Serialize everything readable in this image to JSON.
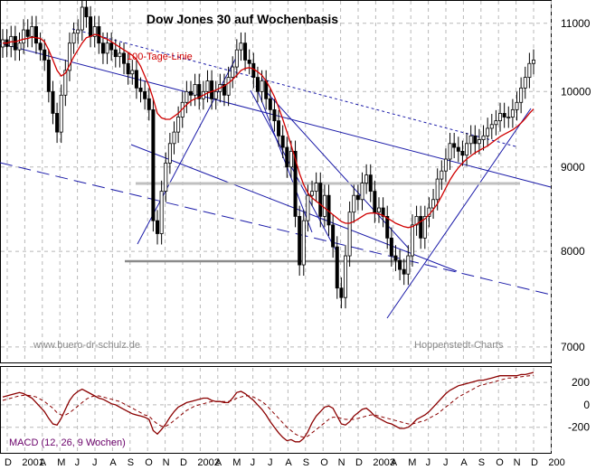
{
  "chart_data": [
    {
      "type": "candlestick",
      "title": "Dow Jones 30 auf Wochenbasis",
      "ma_label": "100-Tage-Linie",
      "watermark_left": "www.buero-dr-schulz.de",
      "watermark_right": "Hoppenstedt-Charts",
      "y_ticks": [
        7000,
        8000,
        9000,
        10000,
        11000
      ],
      "ylim": [
        6850,
        11350
      ],
      "y_scale": "log",
      "x_labels": [
        "D",
        "2001",
        "A",
        "M",
        "J",
        "J",
        "A",
        "S",
        "O",
        "N",
        "D",
        "2002",
        "A",
        "M",
        "J",
        "J",
        "A",
        "S",
        "O",
        "N",
        "D",
        "2003",
        "A",
        "M",
        "J",
        "J",
        "A",
        "S",
        "O",
        "N",
        "D",
        "200"
      ],
      "weekly_closes": [
        10750,
        10650,
        10800,
        10600,
        10700,
        10900,
        10800,
        10950,
        10700,
        10600,
        10450,
        10000,
        9700,
        9450,
        9950,
        10300,
        10700,
        10850,
        10900,
        11250,
        11100,
        10800,
        10950,
        10700,
        10550,
        10700,
        10600,
        10500,
        10550,
        10400,
        10250,
        10300,
        10050,
        10000,
        9900,
        9750,
        8350,
        8200,
        8700,
        9050,
        9300,
        9450,
        9650,
        9850,
        10000,
        9950,
        10100,
        9900,
        10000,
        10150,
        9900,
        10000,
        10100,
        9950,
        10200,
        10350,
        10600,
        10700,
        10450,
        10400,
        10200,
        10000,
        10150,
        9900,
        9750,
        9600,
        9400,
        9250,
        9000,
        9200,
        8400,
        7850,
        8350,
        8650,
        8700,
        8800,
        8400,
        8650,
        8300,
        8050,
        7600,
        7500,
        7950,
        8450,
        8650,
        8600,
        8800,
        8900,
        8700,
        8450,
        8500,
        8400,
        8150,
        7950,
        7900,
        7800,
        7750,
        7950,
        8300,
        8400,
        8150,
        8400,
        8500,
        8600,
        8850,
        8950,
        9100,
        9300,
        9250,
        9200,
        9150,
        9300,
        9400,
        9300,
        9350,
        9400,
        9500,
        9550,
        9600,
        9700,
        9650,
        9650,
        9750,
        9850,
        10050,
        10200,
        10400,
        10450
      ],
      "ma_values": [
        10700,
        10700,
        10720,
        10720,
        10740,
        10760,
        10770,
        10790,
        10780,
        10770,
        10720,
        10600,
        10450,
        10300,
        10220,
        10260,
        10380,
        10500,
        10600,
        10700,
        10780,
        10800,
        10830,
        10820,
        10780,
        10760,
        10720,
        10680,
        10640,
        10600,
        10560,
        10520,
        10460,
        10360,
        10220,
        10080,
        9900,
        9700,
        9640,
        9620,
        9620,
        9660,
        9700,
        9760,
        9820,
        9870,
        9900,
        9920,
        9950,
        9980,
        10000,
        10020,
        10050,
        10080,
        10120,
        10170,
        10230,
        10300,
        10330,
        10340,
        10320,
        10280,
        10230,
        10150,
        10050,
        9930,
        9780,
        9620,
        9450,
        9280,
        9100,
        8920,
        8780,
        8680,
        8620,
        8580,
        8540,
        8500,
        8460,
        8420,
        8380,
        8340,
        8320,
        8320,
        8340,
        8370,
        8400,
        8430,
        8440,
        8440,
        8430,
        8410,
        8380,
        8350,
        8320,
        8300,
        8280,
        8270,
        8280,
        8310,
        8340,
        8370,
        8420,
        8480,
        8550,
        8640,
        8740,
        8840,
        8920,
        8990,
        9050,
        9100,
        9140,
        9180,
        9210,
        9240,
        9270,
        9310,
        9350,
        9390,
        9420,
        9450,
        9480,
        9520,
        9570,
        9630,
        9700,
        9760
      ],
      "macd_label": "MACD (12, 26, 9 Wochen)",
      "macd_ticks": [
        200,
        0,
        -200
      ],
      "macd_ylim": [
        -420,
        330
      ],
      "macd_values": [
        70,
        80,
        90,
        100,
        110,
        100,
        80,
        60,
        20,
        -20,
        -60,
        -120,
        -170,
        -180,
        -120,
        -40,
        40,
        90,
        120,
        140,
        120,
        100,
        80,
        60,
        50,
        30,
        10,
        0,
        -20,
        -40,
        -60,
        -80,
        -90,
        -100,
        -110,
        -130,
        -230,
        -260,
        -220,
        -170,
        -110,
        -60,
        -20,
        0,
        20,
        30,
        40,
        50,
        60,
        60,
        40,
        30,
        30,
        20,
        20,
        60,
        110,
        120,
        100,
        70,
        40,
        0,
        -40,
        -90,
        -150,
        -200,
        -250,
        -290,
        -320,
        -310,
        -330,
        -330,
        -300,
        -240,
        -160,
        -100,
        -60,
        -20,
        -10,
        -30,
        -100,
        -170,
        -180,
        -150,
        -100,
        -70,
        -40,
        -30,
        -60,
        -100,
        -120,
        -140,
        -160,
        -170,
        -190,
        -210,
        -210,
        -200,
        -170,
        -130,
        -110,
        -90,
        -60,
        -20,
        20,
        60,
        100,
        130,
        150,
        170,
        180,
        190,
        200,
        210,
        220,
        220,
        230,
        240,
        250,
        260,
        260,
        260,
        260,
        260,
        270,
        270,
        280,
        290
      ],
      "macd_signal": [
        40,
        50,
        60,
        70,
        80,
        85,
        85,
        80,
        70,
        50,
        30,
        0,
        -30,
        -70,
        -90,
        -90,
        -70,
        -40,
        -10,
        20,
        50,
        70,
        80,
        80,
        70,
        60,
        50,
        40,
        30,
        10,
        -10,
        -30,
        -50,
        -70,
        -90,
        -100,
        -140,
        -170,
        -190,
        -190,
        -170,
        -140,
        -110,
        -80,
        -50,
        -30,
        -10,
        0,
        10,
        20,
        30,
        30,
        30,
        30,
        30,
        40,
        60,
        70,
        80,
        80,
        70,
        50,
        30,
        0,
        -40,
        -80,
        -120,
        -160,
        -200,
        -230,
        -260,
        -280,
        -290,
        -280,
        -250,
        -220,
        -190,
        -160,
        -130,
        -110,
        -110,
        -120,
        -130,
        -130,
        -130,
        -120,
        -110,
        -100,
        -90,
        -90,
        -100,
        -110,
        -120,
        -130,
        -140,
        -150,
        -160,
        -170,
        -170,
        -160,
        -150,
        -140,
        -120,
        -100,
        -80,
        -50,
        -20,
        10,
        40,
        70,
        90,
        110,
        130,
        150,
        170,
        180,
        190,
        200,
        210,
        220,
        230,
        240,
        240,
        245,
        250,
        255,
        260,
        265
      ]
    }
  ]
}
